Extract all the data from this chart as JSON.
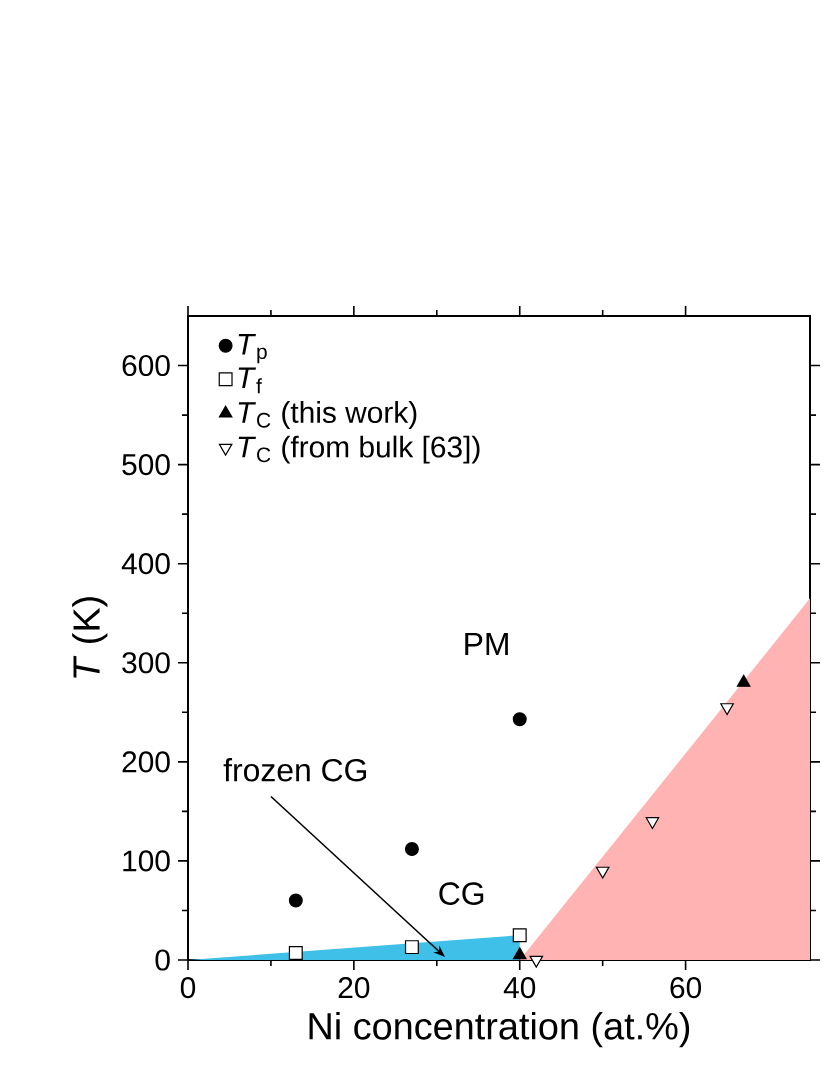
{
  "chart_data": {
    "type": "scatter",
    "xlabel": "Ni concentration (at.%)",
    "ylabel": "*T* (K)",
    "xlim": [
      0,
      75
    ],
    "ylim": [
      0,
      650
    ],
    "xticks": [
      0,
      20,
      40,
      60
    ],
    "yticks": [
      0,
      100,
      200,
      300,
      400,
      500,
      600
    ],
    "legend": "top left",
    "grid": false,
    "annotations": [
      "PM",
      "CG",
      {
        "text": "frozen CG",
        "x": 31,
        "y": 3
      }
    ],
    "series": [
      {
        "type": "area",
        "color": "#ffb3b3",
        "x": [
          40,
          75
        ],
        "values": [
          0,
          365
        ]
      },
      {
        "type": "area",
        "color": "#3fc0e8",
        "x": [
          0,
          40
        ],
        "values": [
          0,
          25
        ]
      },
      {
        "name": "*T*$_{p}$",
        "color": "#000000",
        "marker": "circle",
        "x": [
          13,
          27,
          40
        ],
        "values": [
          60,
          112,
          243
        ]
      },
      {
        "name": "*T*$_{f}$",
        "color": "#000000",
        "marker": "square-open",
        "x": [
          13,
          27,
          40
        ],
        "values": [
          7,
          13,
          25
        ]
      },
      {
        "name": "*T*$_{C}$ (this work)",
        "color": "#000000",
        "marker": "triangle",
        "x": [
          40,
          67
        ],
        "values": [
          5,
          280
        ]
      },
      {
        "name": "*T*$_{C}$ (from bulk [63])",
        "color": "#000000",
        "marker": "triangle-down-open",
        "x": [
          42,
          50,
          56,
          65
        ],
        "values": [
          0,
          90,
          140,
          255
        ]
      }
    ]
  }
}
